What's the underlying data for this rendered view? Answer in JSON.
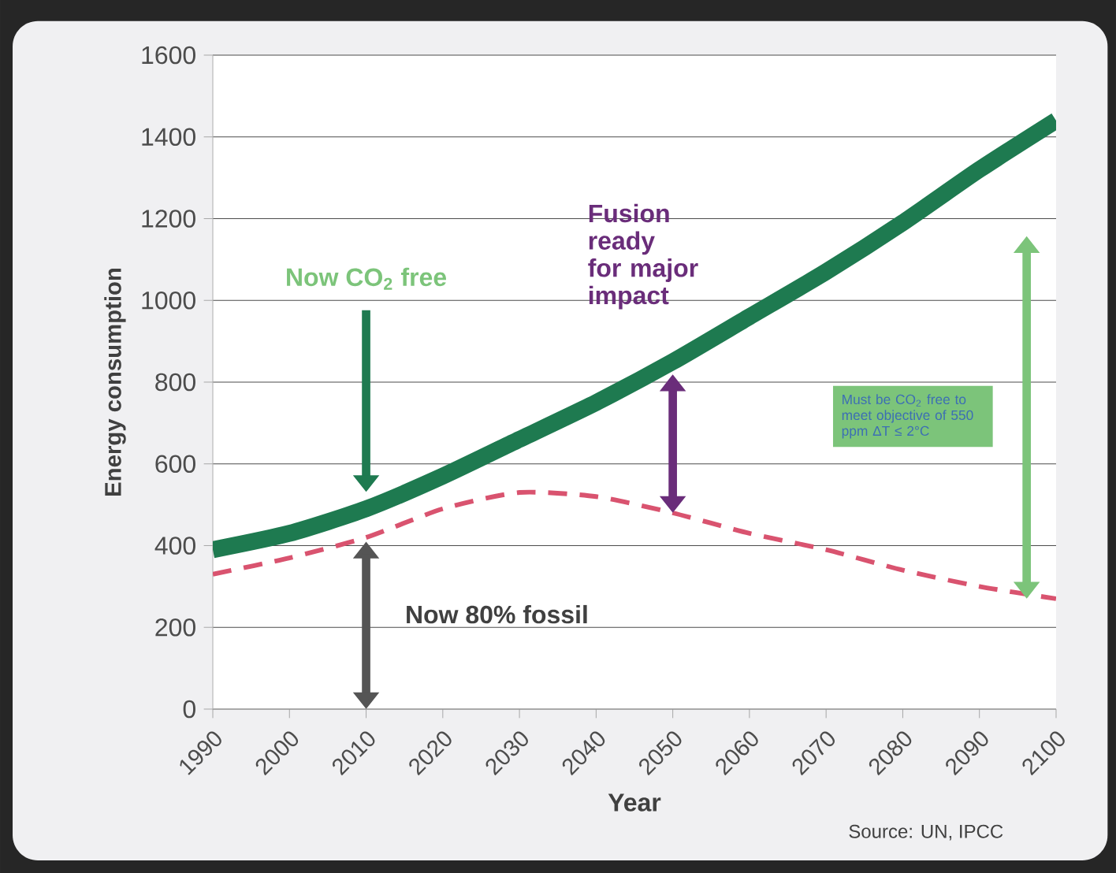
{
  "chart_data": {
    "type": "line",
    "xlabel": "Year",
    "ylabel": "Energy consumption",
    "x": [
      1990,
      2000,
      2010,
      2020,
      2030,
      2040,
      2050,
      2060,
      2070,
      2080,
      2090,
      2100
    ],
    "xlim": [
      1990,
      2100
    ],
    "xticks": [
      1990,
      2000,
      2010,
      2020,
      2030,
      2040,
      2050,
      2060,
      2070,
      2080,
      2090,
      2100
    ],
    "ylim": [
      0,
      1600
    ],
    "yticks": [
      0,
      200,
      400,
      600,
      800,
      1000,
      1200,
      1400,
      1600
    ],
    "grid": "y",
    "series": [
      {
        "color": "#1e7a50",
        "line_style": "solid",
        "values": [
          390,
          430,
          490,
          570,
          660,
          750,
          850,
          960,
          1070,
          1190,
          1320,
          1440
        ]
      },
      {
        "color": "#d9536f",
        "line_style": "dashed",
        "values": [
          330,
          370,
          420,
          490,
          530,
          520,
          480,
          430,
          390,
          340,
          300,
          270
        ]
      }
    ],
    "annotations": [
      "Now CO$_{2}$ free",
      "Fusion ready for major impact",
      "Now 80% fossil",
      "Must be CO$_{2}$ free to meet objective of 550 ppm ΔT ≤ 2°C",
      "Source: UN, IPCC"
    ]
  }
}
